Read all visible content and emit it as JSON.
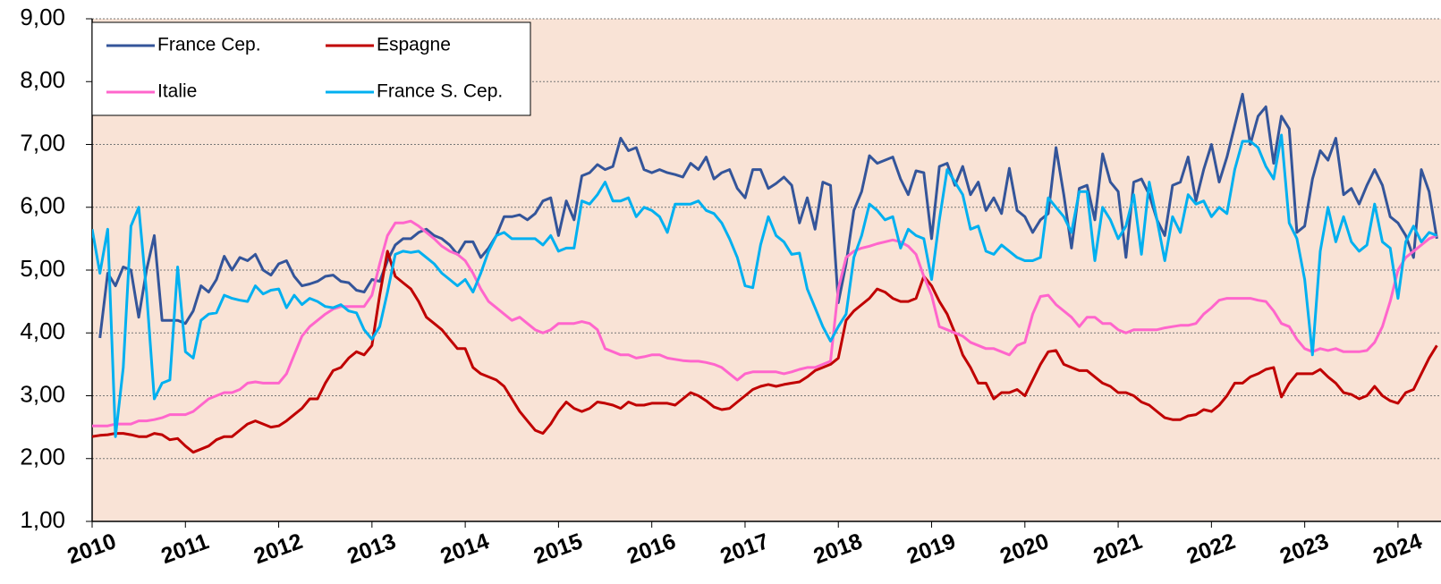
{
  "chart_data": {
    "type": "line",
    "categories": [
      "2010",
      null,
      null,
      null,
      null,
      null,
      null,
      null,
      null,
      null,
      null,
      null,
      "2011",
      null,
      null,
      null,
      null,
      null,
      null,
      null,
      null,
      null,
      null,
      null,
      "2012",
      null,
      null,
      null,
      null,
      null,
      null,
      null,
      null,
      null,
      null,
      null,
      "2013",
      null,
      null,
      null,
      null,
      null,
      null,
      null,
      null,
      null,
      null,
      null,
      "2014",
      null,
      null,
      null,
      null,
      null,
      null,
      null,
      null,
      null,
      null,
      null,
      "2015",
      null,
      null,
      null,
      null,
      null,
      null,
      null,
      null,
      null,
      null,
      null,
      "2016",
      null,
      null,
      null,
      null,
      null,
      null,
      null,
      null,
      null,
      null,
      null,
      "2017",
      null,
      null,
      null,
      null,
      null,
      null,
      null,
      null,
      null,
      null,
      null,
      "2018",
      null,
      null,
      null,
      null,
      null,
      null,
      null,
      null,
      null,
      null,
      null,
      "2019",
      null,
      null,
      null,
      null,
      null,
      null,
      null,
      null,
      null,
      null,
      null,
      "2020",
      null,
      null,
      null,
      null,
      null,
      null,
      null,
      null,
      null,
      null,
      null,
      "2021",
      null,
      null,
      null,
      null,
      null,
      null,
      null,
      null,
      null,
      null,
      null,
      "2022",
      null,
      null,
      null,
      null,
      null,
      null,
      null,
      null,
      null,
      null,
      null,
      "2023",
      null,
      null,
      null,
      null,
      null,
      null,
      null,
      null,
      null,
      null,
      null,
      "2024",
      null,
      null,
      null,
      null,
      null
    ],
    "series": [
      {
        "name": "France Cep.",
        "color": "#34559a",
        "values": [
          null,
          3.92,
          4.95,
          4.75,
          5.05,
          5.0,
          4.25,
          5.0,
          5.55,
          4.2,
          4.2,
          4.2,
          4.15,
          4.35,
          4.75,
          4.65,
          4.85,
          5.22,
          5.0,
          5.2,
          5.15,
          5.25,
          5.0,
          4.92,
          5.1,
          5.15,
          4.9,
          4.75,
          4.78,
          4.82,
          4.9,
          4.92,
          4.82,
          4.8,
          4.68,
          4.65,
          4.85,
          4.82,
          5.15,
          5.4,
          5.5,
          5.5,
          5.6,
          5.65,
          5.55,
          5.5,
          5.4,
          5.25,
          5.45,
          5.45,
          5.2,
          5.35,
          5.55,
          5.85,
          5.85,
          5.88,
          5.8,
          5.9,
          6.1,
          6.15,
          5.55,
          6.1,
          5.8,
          6.5,
          6.55,
          6.68,
          6.6,
          6.65,
          7.1,
          6.9,
          6.95,
          6.6,
          6.55,
          6.6,
          6.55,
          6.52,
          6.48,
          6.7,
          6.6,
          6.8,
          6.45,
          6.55,
          6.6,
          6.3,
          6.15,
          6.6,
          6.6,
          6.3,
          6.38,
          6.48,
          6.35,
          5.75,
          6.15,
          5.65,
          6.4,
          6.35,
          4.48,
          5.1,
          5.95,
          6.25,
          6.82,
          6.7,
          6.75,
          6.8,
          6.45,
          6.2,
          6.58,
          6.55,
          5.5,
          6.65,
          6.7,
          6.35,
          6.65,
          6.2,
          6.4,
          5.95,
          6.15,
          5.9,
          6.62,
          5.95,
          5.85,
          5.6,
          5.8,
          5.9,
          6.95,
          6.2,
          5.35,
          6.3,
          6.35,
          5.8,
          6.85,
          6.4,
          6.25,
          5.2,
          6.4,
          6.45,
          6.2,
          5.8,
          5.55,
          6.35,
          6.4,
          6.8,
          6.1,
          6.6,
          7.0,
          6.4,
          6.8,
          7.3,
          7.8,
          7.0,
          7.45,
          7.6,
          6.7,
          7.45,
          7.25,
          5.6,
          5.7,
          6.45,
          6.9,
          6.75,
          7.1,
          6.2,
          6.3,
          6.05,
          6.35,
          6.6,
          6.35,
          5.85,
          5.75,
          5.55,
          5.2,
          6.6,
          6.25,
          5.5
        ]
      },
      {
        "name": "Espagne",
        "color": "#c00000",
        "values": [
          2.35,
          2.37,
          2.38,
          2.4,
          2.4,
          2.38,
          2.35,
          2.35,
          2.4,
          2.38,
          2.3,
          2.32,
          2.2,
          2.1,
          2.15,
          2.2,
          2.3,
          2.35,
          2.35,
          2.45,
          2.55,
          2.6,
          2.55,
          2.5,
          2.52,
          2.6,
          2.7,
          2.8,
          2.95,
          2.95,
          3.2,
          3.4,
          3.45,
          3.6,
          3.7,
          3.65,
          3.8,
          4.6,
          5.3,
          4.9,
          4.8,
          4.7,
          4.5,
          4.25,
          4.15,
          4.05,
          3.9,
          3.75,
          3.75,
          3.45,
          3.35,
          3.3,
          3.25,
          3.15,
          2.95,
          2.75,
          2.6,
          2.45,
          2.4,
          2.55,
          2.75,
          2.9,
          2.8,
          2.75,
          2.8,
          2.9,
          2.88,
          2.85,
          2.8,
          2.9,
          2.85,
          2.85,
          2.88,
          2.88,
          2.88,
          2.85,
          2.95,
          3.05,
          3.0,
          2.92,
          2.82,
          2.78,
          2.8,
          2.9,
          3.0,
          3.1,
          3.15,
          3.18,
          3.15,
          3.18,
          3.2,
          3.22,
          3.3,
          3.4,
          3.45,
          3.5,
          3.6,
          4.2,
          4.35,
          4.45,
          4.55,
          4.7,
          4.65,
          4.55,
          4.5,
          4.5,
          4.55,
          4.9,
          4.75,
          4.5,
          4.3,
          4.0,
          3.65,
          3.45,
          3.2,
          3.2,
          2.95,
          3.05,
          3.05,
          3.1,
          3.0,
          3.25,
          3.5,
          3.7,
          3.72,
          3.5,
          3.45,
          3.4,
          3.4,
          3.3,
          3.2,
          3.15,
          3.05,
          3.05,
          3.0,
          2.9,
          2.85,
          2.75,
          2.65,
          2.62,
          2.62,
          2.68,
          2.7,
          2.78,
          2.75,
          2.85,
          3.0,
          3.2,
          3.2,
          3.3,
          3.35,
          3.42,
          3.45,
          2.98,
          3.2,
          3.35,
          3.35,
          3.35,
          3.42,
          3.3,
          3.2,
          3.05,
          3.02,
          2.95,
          3.0,
          3.15,
          3.0,
          2.92,
          2.88,
          3.05,
          3.1,
          3.35,
          3.6,
          3.8
        ]
      },
      {
        "name": "Italie",
        "color": "#ff66cc",
        "values": [
          2.52,
          2.52,
          2.52,
          2.55,
          2.55,
          2.55,
          2.6,
          2.6,
          2.62,
          2.65,
          2.7,
          2.7,
          2.7,
          2.75,
          2.85,
          2.95,
          3.0,
          3.05,
          3.05,
          3.1,
          3.2,
          3.22,
          3.2,
          3.2,
          3.2,
          3.35,
          3.65,
          3.95,
          4.1,
          4.2,
          4.3,
          4.38,
          4.42,
          4.42,
          4.42,
          4.42,
          4.6,
          5.1,
          5.55,
          5.75,
          5.75,
          5.78,
          5.7,
          5.6,
          5.5,
          5.38,
          5.3,
          5.25,
          5.15,
          4.95,
          4.7,
          4.5,
          4.4,
          4.3,
          4.2,
          4.25,
          4.15,
          4.05,
          4.0,
          4.05,
          4.15,
          4.15,
          4.15,
          4.18,
          4.15,
          4.05,
          3.75,
          3.7,
          3.65,
          3.65,
          3.6,
          3.62,
          3.65,
          3.65,
          3.6,
          3.58,
          3.56,
          3.55,
          3.55,
          3.53,
          3.5,
          3.45,
          3.35,
          3.25,
          3.35,
          3.38,
          3.38,
          3.38,
          3.38,
          3.35,
          3.38,
          3.42,
          3.45,
          3.45,
          3.5,
          3.55,
          4.7,
          5.2,
          5.3,
          5.35,
          5.38,
          5.42,
          5.45,
          5.48,
          5.45,
          5.38,
          5.25,
          4.9,
          4.6,
          4.1,
          4.05,
          4.0,
          3.95,
          3.85,
          3.8,
          3.75,
          3.75,
          3.7,
          3.65,
          3.8,
          3.85,
          4.3,
          4.58,
          4.6,
          4.45,
          4.35,
          4.25,
          4.1,
          4.25,
          4.25,
          4.15,
          4.15,
          4.05,
          4.0,
          4.05,
          4.05,
          4.05,
          4.05,
          4.08,
          4.1,
          4.12,
          4.12,
          4.15,
          4.3,
          4.4,
          4.52,
          4.55,
          4.55,
          4.55,
          4.55,
          4.52,
          4.5,
          4.35,
          4.15,
          4.1,
          3.9,
          3.75,
          3.7,
          3.75,
          3.72,
          3.75,
          3.7,
          3.7,
          3.7,
          3.72,
          3.85,
          4.1,
          4.5,
          5.0,
          5.2,
          5.3,
          5.4,
          5.5,
          5.55
        ]
      },
      {
        "name": "France S. Cep.",
        "color": "#00b0f0",
        "values": [
          5.65,
          4.95,
          5.65,
          2.35,
          3.45,
          5.7,
          6.0,
          4.65,
          2.95,
          3.2,
          3.25,
          5.05,
          3.7,
          3.6,
          4.2,
          4.3,
          4.32,
          4.6,
          4.55,
          4.52,
          4.5,
          4.75,
          4.62,
          4.68,
          4.7,
          4.4,
          4.6,
          4.45,
          4.55,
          4.5,
          4.42,
          4.4,
          4.45,
          4.35,
          4.32,
          4.05,
          3.9,
          4.1,
          4.65,
          5.25,
          5.3,
          5.28,
          5.3,
          5.2,
          5.1,
          4.95,
          4.85,
          4.75,
          4.85,
          4.65,
          4.95,
          5.3,
          5.55,
          5.6,
          5.5,
          5.5,
          5.5,
          5.5,
          5.4,
          5.55,
          5.3,
          5.35,
          5.35,
          6.1,
          6.05,
          6.2,
          6.4,
          6.1,
          6.1,
          6.15,
          5.85,
          6.0,
          5.95,
          5.85,
          5.6,
          6.05,
          6.05,
          6.05,
          6.1,
          5.95,
          5.9,
          5.75,
          5.5,
          5.2,
          4.75,
          4.72,
          5.4,
          5.85,
          5.55,
          5.45,
          5.25,
          5.27,
          4.7,
          4.4,
          4.1,
          3.87,
          4.1,
          4.3,
          5.2,
          5.55,
          6.05,
          5.95,
          5.8,
          5.85,
          5.35,
          5.65,
          5.55,
          5.5,
          4.85,
          5.8,
          6.6,
          6.4,
          6.2,
          5.65,
          5.7,
          5.3,
          5.25,
          5.4,
          5.3,
          5.2,
          5.15,
          5.15,
          5.2,
          6.15,
          6.0,
          5.85,
          5.6,
          6.25,
          6.25,
          5.15,
          6.0,
          5.8,
          5.5,
          5.7,
          6.2,
          5.25,
          6.4,
          5.8,
          5.15,
          5.85,
          5.6,
          6.2,
          6.05,
          6.1,
          5.85,
          6.0,
          5.9,
          6.6,
          7.05,
          7.05,
          6.95,
          6.65,
          6.45,
          7.15,
          5.75,
          5.5,
          4.85,
          3.65,
          5.3,
          6.0,
          5.45,
          5.85,
          5.45,
          5.3,
          5.4,
          6.05,
          5.45,
          5.35,
          4.55,
          5.45,
          5.7,
          5.45,
          5.6,
          5.55
        ]
      }
    ],
    "ylim": [
      1,
      9
    ],
    "yticks": [
      {
        "value": 1,
        "label": "1,00"
      },
      {
        "value": 2,
        "label": "2,00"
      },
      {
        "value": 3,
        "label": "3,00"
      },
      {
        "value": 4,
        "label": "4,00"
      },
      {
        "value": 5,
        "label": "5,00"
      },
      {
        "value": 6,
        "label": "6,00"
      },
      {
        "value": 7,
        "label": "7,00"
      },
      {
        "value": 8,
        "label": "8,00"
      },
      {
        "value": 9,
        "label": "9,00"
      }
    ],
    "grid": true,
    "legend": "upper left",
    "background": "#f9e3d6"
  }
}
